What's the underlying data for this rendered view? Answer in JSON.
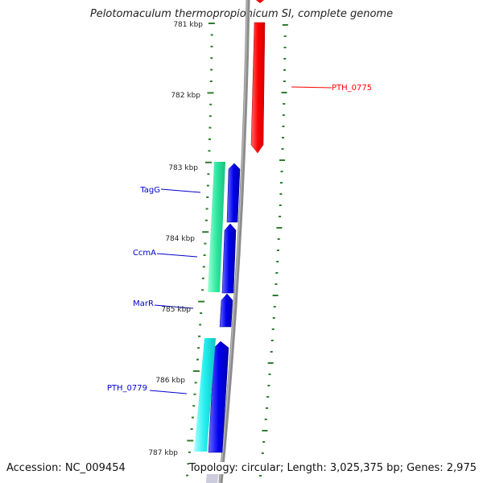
{
  "title": "Pelotomaculum thermopropionicum SI, complete genome",
  "accession": "Accession: NC_009454",
  "topology": "Topology: circular; Length: 3,025,375 bp; Genes: 2,975",
  "ticks": [
    {
      "label": "781 kbp"
    },
    {
      "label": "782 kbp"
    },
    {
      "label": "783 kbp"
    },
    {
      "label": "784 kbp"
    },
    {
      "label": "785 kbp"
    },
    {
      "label": "786 kbp"
    },
    {
      "label": "787 kbp"
    }
  ],
  "genes": [
    {
      "label": "PTH_0775",
      "color": "#ff0000"
    },
    {
      "label": "TagG",
      "color": "#0000cc"
    },
    {
      "label": "CcmA",
      "color": "#0000cc"
    },
    {
      "label": "MarR",
      "color": "#0000cc"
    },
    {
      "label": "PTH_0779",
      "color": "#0000cc"
    }
  ],
  "colors": {
    "backbone": "#8c8c8c",
    "tick": "#2e7d2e",
    "forward_gene": "#ff0000",
    "reverse_gene": "#0000dd",
    "green_feature": "#2ee8a0",
    "cyan_feature": "#22eeee"
  }
}
